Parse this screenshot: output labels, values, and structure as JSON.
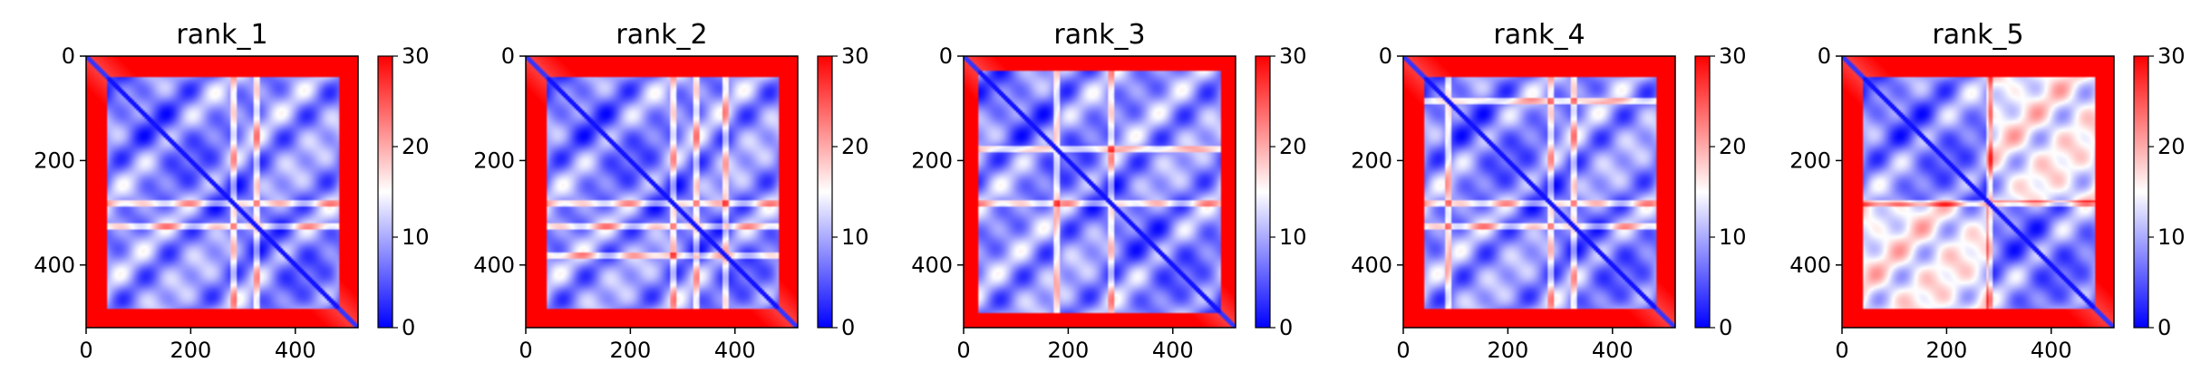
{
  "chart_data": [
    {
      "type": "heatmap",
      "title": "rank_1",
      "xlabel": "",
      "ylabel": "",
      "xlim": [
        0,
        520
      ],
      "ylim": [
        520,
        0
      ],
      "x_ticks": [
        "0",
        "200",
        "400"
      ],
      "y_ticks": [
        "0",
        "200",
        "400"
      ],
      "colorbar": {
        "range": [
          0,
          30
        ],
        "ticks": [
          "0",
          "10",
          "20",
          "30"
        ],
        "colormap": "bwr"
      },
      "features": {
        "border_low_row": 40,
        "border_high_row": 480,
        "stripes": [
          280,
          325
        ],
        "blocks": []
      }
    },
    {
      "type": "heatmap",
      "title": "rank_2",
      "xlabel": "",
      "ylabel": "",
      "xlim": [
        0,
        520
      ],
      "ylim": [
        520,
        0
      ],
      "x_ticks": [
        "0",
        "200",
        "400"
      ],
      "y_ticks": [
        "0",
        "200",
        "400"
      ],
      "colorbar": {
        "range": [
          0,
          30
        ],
        "ticks": [
          "0",
          "10",
          "20",
          "30"
        ],
        "colormap": "bwr"
      },
      "features": {
        "border_low_row": 40,
        "border_high_row": 480,
        "stripes": [
          280,
          325,
          380
        ],
        "blocks": []
      }
    },
    {
      "type": "heatmap",
      "title": "rank_3",
      "xlabel": "",
      "ylabel": "",
      "xlim": [
        0,
        520
      ],
      "ylim": [
        520,
        0
      ],
      "x_ticks": [
        "0",
        "200",
        "400"
      ],
      "y_ticks": [
        "0",
        "200",
        "400"
      ],
      "colorbar": {
        "range": [
          0,
          30
        ],
        "ticks": [
          "0",
          "10",
          "20",
          "30"
        ],
        "colormap": "bwr"
      },
      "features": {
        "border_low_row": 25,
        "border_high_row": 490,
        "stripes": [
          175,
          280
        ],
        "blocks": []
      }
    },
    {
      "type": "heatmap",
      "title": "rank_4",
      "xlabel": "",
      "ylabel": "",
      "xlim": [
        0,
        520
      ],
      "ylim": [
        520,
        0
      ],
      "x_ticks": [
        "0",
        "200",
        "400"
      ],
      "y_ticks": [
        "0",
        "200",
        "400"
      ],
      "colorbar": {
        "range": [
          0,
          30
        ],
        "ticks": [
          "0",
          "10",
          "20",
          "30"
        ],
        "colormap": "bwr"
      },
      "features": {
        "border_low_row": 40,
        "border_high_row": 480,
        "stripes": [
          85,
          280,
          325
        ],
        "blocks": []
      }
    },
    {
      "type": "heatmap",
      "title": "rank_5",
      "xlabel": "",
      "ylabel": "",
      "xlim": [
        0,
        520
      ],
      "ylim": [
        520,
        0
      ],
      "x_ticks": [
        "0",
        "200",
        "400"
      ],
      "y_ticks": [
        "0",
        "200",
        "400"
      ],
      "colorbar": {
        "range": [
          0,
          30
        ],
        "ticks": [
          "0",
          "10",
          "20",
          "30"
        ],
        "colormap": "bwr"
      },
      "features": {
        "border_low_row": 40,
        "border_high_row": 480,
        "stripes": [
          280
        ],
        "blocks": [
          [
            0,
            280,
            280,
            520
          ]
        ]
      }
    }
  ]
}
